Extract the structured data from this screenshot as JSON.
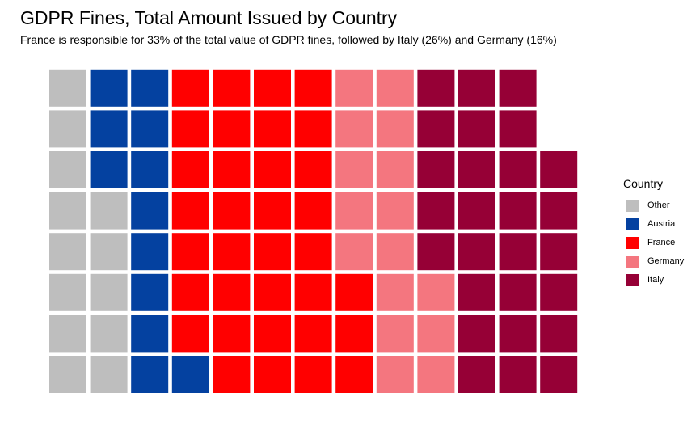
{
  "title": "GDPR Fines, Total Amount Issued by Country",
  "subtitle": "France is responsible for 33% of the total value of GDPR fines, followed by Italy (26%) and Germany (16%)",
  "chart_data": {
    "type": "waffle",
    "title": "GDPR Fines, Total Amount Issued by Country",
    "subtitle": "France is responsible for 33% of the total value of GDPR fines, followed by Italy (26%) and Germany (16%)",
    "rows": 8,
    "fill_order": "bottom-to-top within each column, left-to-right",
    "legend_title": "Country",
    "legend_position": "right",
    "categories": [
      {
        "name": "Other",
        "count": 13,
        "color": "#bebebe"
      },
      {
        "name": "Austria",
        "count": 12,
        "color": "#0441a0"
      },
      {
        "name": "France",
        "count": 34,
        "color": "#ff0000"
      },
      {
        "name": "Germany",
        "count": 16,
        "color": "#f4767f"
      },
      {
        "name": "Italy",
        "count": 27,
        "color": "#960036"
      }
    ],
    "total_squares": 102
  }
}
